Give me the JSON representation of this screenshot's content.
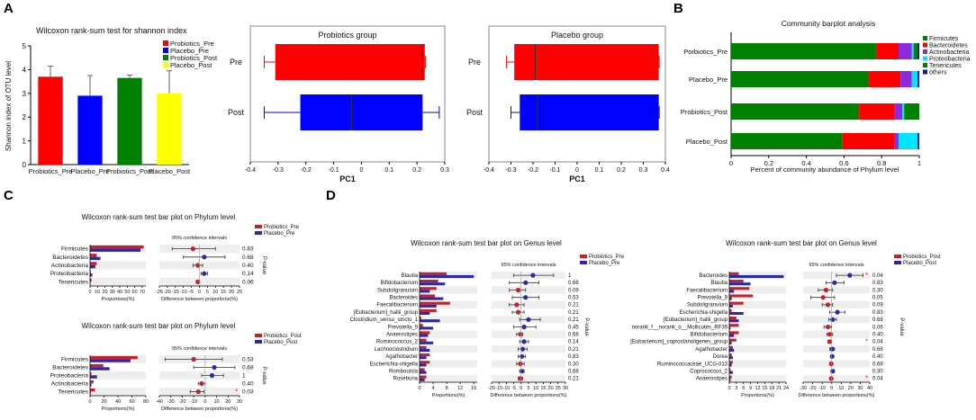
{
  "panels": {
    "a": "A",
    "b": "B",
    "c": "C",
    "d": "D"
  },
  "colors": {
    "red": "#ff0000",
    "blue": "#0000ff",
    "green": "#008000",
    "yellow": "#ffff00",
    "dkred": "#c8202a",
    "dkblue": "#2a2aa8",
    "cyan": "#00e5ff",
    "purple": "#8a2be2",
    "navy": "#1515c0"
  },
  "chart_data": [
    {
      "id": "A1",
      "type": "bar",
      "title": "Wilcoxon rank-sum test for shannon index",
      "ylabel": "Shannon index of OTU level",
      "ylim": [
        0,
        5
      ],
      "yticks": [
        0,
        1,
        2,
        3,
        4,
        5
      ],
      "categories": [
        "Probiotics_Pre",
        "Placebo_Pre",
        "Probiotics_Post",
        "Placebo_Post"
      ],
      "values": [
        3.7,
        2.9,
        3.65,
        3.0
      ],
      "errors": [
        0.45,
        0.85,
        0.12,
        0.95
      ],
      "legend": [
        "Probiotics_Pre",
        "Placebo_Pre",
        "Probiotics_Post",
        "Placebo_Post"
      ]
    },
    {
      "id": "A2",
      "type": "boxplot",
      "title": "Probiotics group",
      "xlabel": "PC1",
      "xlim": [
        -0.4,
        0.3
      ],
      "xticks": [
        "-0.4",
        "-0.3",
        "-0.2",
        "-0.1",
        "0",
        "0.1",
        "0.2",
        "0.3"
      ],
      "boxes": [
        {
          "label": "Pre",
          "min": -0.35,
          "q1": -0.31,
          "median": 0.22,
          "q3": 0.228,
          "max": 0.23
        },
        {
          "label": "Post",
          "min": -0.35,
          "q1": -0.22,
          "median": -0.035,
          "q3": 0.22,
          "max": 0.28
        }
      ]
    },
    {
      "id": "A3",
      "type": "boxplot",
      "title": "Placebo group",
      "xlabel": "PC1",
      "xlim": [
        -0.4,
        0.4
      ],
      "xticks": [
        "-0.4",
        "-0.3",
        "-0.2",
        "-0.1",
        "0",
        "0.1",
        "0.2",
        "0.3",
        "0.4"
      ],
      "boxes": [
        {
          "label": "Pre",
          "min": -0.32,
          "q1": -0.285,
          "median": -0.19,
          "q3": 0.37,
          "max": 0.372
        },
        {
          "label": "Post",
          "min": -0.3,
          "q1": -0.26,
          "median": -0.18,
          "q3": 0.37,
          "max": 0.372
        }
      ]
    },
    {
      "id": "B",
      "type": "stacked-bar",
      "title": "Community barplot analysis",
      "xlabel": "Percent of community abundance of Phylum level",
      "xticks": [
        "0",
        "0.2",
        "0.4",
        "0.6",
        "0.8",
        "1"
      ],
      "categories": [
        "Porbiotics_Pre",
        "Placebo_Pre",
        "Probiotics_Post",
        "Placebo_Post"
      ],
      "series": [
        {
          "name": "Firmicutes",
          "values": [
            0.77,
            0.73,
            0.68,
            0.59
          ]
        },
        {
          "name": "Bacteroidetes",
          "values": [
            0.12,
            0.17,
            0.19,
            0.28
          ]
        },
        {
          "name": "Actinobacteria",
          "values": [
            0.07,
            0.06,
            0.04,
            0.02
          ]
        },
        {
          "name": "Proteobacteria",
          "values": [
            0.01,
            0.03,
            0.01,
            0.1
          ]
        },
        {
          "name": "Tenericutes",
          "values": [
            0.02,
            0.0,
            0.08,
            0.0
          ]
        },
        {
          "name": "others",
          "values": [
            0.01,
            0.01,
            0.0,
            0.01
          ]
        }
      ]
    },
    {
      "id": "C1",
      "type": "diff-bar",
      "title": "Wilcoxon rank-sum test bar plot on Phylum level",
      "legend": [
        "Probiotics_Pre",
        "Placebo_Pre"
      ],
      "ci_label": "95% confidence intervals",
      "xlabel_left": "Proportions(%)",
      "xlabel_right": "Difference between proportions(%)",
      "pvalue_label": "P-value",
      "left_xticks": [
        "0",
        "10",
        "20",
        "30",
        "40",
        "50",
        "60",
        "70"
      ],
      "left_max": 75,
      "right_xticks": [
        "-25",
        "-20",
        "-15",
        "-10",
        "-5",
        "0",
        "5",
        "10",
        "15",
        "20",
        "25"
      ],
      "right_min": -25,
      "right_max": 25,
      "rows": [
        {
          "label": "Firmicutes",
          "a": 72,
          "b": 68,
          "diff": -4,
          "lo": -17,
          "hi": 10,
          "p": "0.83",
          "sig": ""
        },
        {
          "label": "Bacteroidetes",
          "a": 9,
          "b": 14,
          "diff": 3,
          "lo": -10,
          "hi": 16,
          "p": "0.68",
          "sig": ""
        },
        {
          "label": "Actinobacteria",
          "a": 9,
          "b": 7,
          "diff": -1,
          "lo": -4,
          "hi": 2,
          "p": "0.40",
          "sig": ""
        },
        {
          "label": "Proteobacteria",
          "a": 1,
          "b": 3,
          "diff": 3,
          "lo": 1,
          "hi": 5,
          "p": "0.14",
          "sig": ""
        },
        {
          "label": "Tenericutes",
          "a": 2,
          "b": 0.5,
          "diff": -1,
          "lo": -2,
          "hi": 0,
          "p": "0.06",
          "sig": ""
        }
      ]
    },
    {
      "id": "C2",
      "type": "diff-bar",
      "title": "Wilcoxon rank-sum test bar plot on Phylum level",
      "legend": [
        "Probiotics_Post",
        "Placebo_Post"
      ],
      "ci_label": "95% confidence intervals",
      "xlabel_left": "Proportions(%)",
      "xlabel_right": "Difference between proportions(%)",
      "pvalue_label": "P-value",
      "left_xticks": [
        "0",
        "20",
        "40",
        "60",
        "80"
      ],
      "left_max": 80,
      "right_xticks": [
        "-40",
        "-30",
        "-20",
        "-10",
        "0",
        "10",
        "20",
        "30"
      ],
      "right_min": -40,
      "right_max": 30,
      "rows": [
        {
          "label": "Firmicutes",
          "a": 68,
          "b": 58,
          "diff": -10,
          "lo": -35,
          "hi": 15,
          "p": "0.53",
          "sig": ""
        },
        {
          "label": "Bacteroidetes",
          "a": 19,
          "b": 28,
          "diff": 8,
          "lo": -10,
          "hi": 26,
          "p": "0.68",
          "sig": ""
        },
        {
          "label": "Proteobacteria",
          "a": 2,
          "b": 10,
          "diff": 6,
          "lo": -3,
          "hi": 16,
          "p": "1",
          "sig": ""
        },
        {
          "label": "Actinobacteria",
          "a": 5,
          "b": 2,
          "diff": -3,
          "lo": -6,
          "hi": 0,
          "p": "0.40",
          "sig": ""
        },
        {
          "label": "Tenericutes",
          "a": 7,
          "b": 1,
          "diff": -6,
          "lo": -13,
          "hi": -1,
          "p": "0.03",
          "sig": "*"
        }
      ]
    },
    {
      "id": "D1",
      "type": "diff-bar",
      "title": "Wilcoxon rank-sum test bar plot on Genus level",
      "legend": [
        "Probiotics_Pre",
        "Placebo_Pre"
      ],
      "ci_label": "95% confidence intervals",
      "xlabel_left": "Proportions(%)",
      "xlabel_right": "Difference between proportions(%)",
      "pvalue_label": "P-value",
      "left_xticks": [
        "0",
        "4",
        "8",
        "12",
        "16"
      ],
      "left_max": 17,
      "right_xticks": [
        "-20",
        "-15",
        "-10",
        "-5",
        "0",
        "5",
        "10",
        "15",
        "20",
        "25",
        "30"
      ],
      "right_min": -20,
      "right_max": 30,
      "rows": [
        {
          "label": "Blautia",
          "a": 8,
          "b": 16,
          "diff": 8,
          "lo": -5,
          "hi": 22,
          "p": "1",
          "sig": ""
        },
        {
          "label": "Bifidobacterium",
          "a": 5.5,
          "b": 7.5,
          "diff": 3,
          "lo": -8,
          "hi": 12,
          "p": "0.68",
          "sig": ""
        },
        {
          "label": "Subdoligranulum",
          "a": 5,
          "b": 3,
          "diff": -2,
          "lo": -8,
          "hi": 3,
          "p": "0.09",
          "sig": ""
        },
        {
          "label": "Bacteroides",
          "a": 4.5,
          "b": 7,
          "diff": 3,
          "lo": -6,
          "hi": 12,
          "p": "0.53",
          "sig": ""
        },
        {
          "label": "Faecalibacterium",
          "a": 9,
          "b": 5,
          "diff": -3,
          "lo": -8,
          "hi": 2,
          "p": "0.21",
          "sig": ""
        },
        {
          "label": "[Eubacterium]_hallii_group",
          "a": 5,
          "b": 3,
          "diff": -2,
          "lo": -6,
          "hi": 2,
          "p": "0.21",
          "sig": ""
        },
        {
          "label": "Clostridium_sensu_stricto_1",
          "a": 0.5,
          "b": 6,
          "diff": 5,
          "lo": -1,
          "hi": 13,
          "p": "0.21",
          "sig": ""
        },
        {
          "label": "Prevotella_9",
          "a": 1,
          "b": 4,
          "diff": 2,
          "lo": -5,
          "hi": 10,
          "p": "0.45",
          "sig": ""
        },
        {
          "label": "Anaerostipes",
          "a": 3,
          "b": 2.5,
          "diff": -0.5,
          "lo": -3,
          "hi": 1,
          "p": "0.68",
          "sig": ""
        },
        {
          "label": "Ruminococcus_2",
          "a": 2,
          "b": 4,
          "diff": 2,
          "lo": -1,
          "hi": 5,
          "p": "0.14",
          "sig": ""
        },
        {
          "label": "Lachnoclostridium",
          "a": 2,
          "b": 3,
          "diff": 1,
          "lo": -2,
          "hi": 4,
          "p": "0.21",
          "sig": ""
        },
        {
          "label": "Agathobacter",
          "a": 3,
          "b": 2,
          "diff": 0.5,
          "lo": -2,
          "hi": 3,
          "p": "0.83",
          "sig": ""
        },
        {
          "label": "Escherichia-shigella",
          "a": 3,
          "b": 2,
          "diff": -0.5,
          "lo": -3,
          "hi": 2,
          "p": "0.30",
          "sig": ""
        },
        {
          "label": "Romboutsia",
          "a": 1.5,
          "b": 2,
          "diff": 0.5,
          "lo": -1,
          "hi": 2,
          "p": "0.68",
          "sig": ""
        },
        {
          "label": "Roseburia",
          "a": 2,
          "b": 1.5,
          "diff": -0.5,
          "lo": -2,
          "hi": 1,
          "p": "0.21",
          "sig": ""
        }
      ]
    },
    {
      "id": "D2",
      "type": "diff-bar",
      "title": "Wilcoxon rank-sum test bar plot on Genus level",
      "legend": [
        "Probiotics_Post",
        "Placebo_Post"
      ],
      "ci_label": "95% confidence intervals",
      "xlabel_left": "Proportions(%)",
      "xlabel_right": "Difference between proportions(%)",
      "pvalue_label": "P-value",
      "left_xticks": [
        "0",
        "3",
        "6",
        "9",
        "12",
        "15",
        "18",
        "21",
        "24"
      ],
      "left_max": 24,
      "right_xticks": [
        "-30",
        "-20",
        "-10",
        "0",
        "10",
        "20",
        "30",
        "40"
      ],
      "right_min": -30,
      "right_max": 40,
      "rows": [
        {
          "label": "Bacteroides",
          "a": 4,
          "b": 23,
          "diff": 19,
          "lo": 5,
          "hi": 33,
          "p": "0.04",
          "sig": "*"
        },
        {
          "label": "Blautia",
          "a": 6,
          "b": 9,
          "diff": 3,
          "lo": -6,
          "hi": 13,
          "p": "0.83",
          "sig": ""
        },
        {
          "label": "Faecalibacterium",
          "a": 8.5,
          "b": 2,
          "diff": -6,
          "lo": -14,
          "hi": 1,
          "p": "0.30",
          "sig": ""
        },
        {
          "label": "Prevotella_9",
          "a": 10,
          "b": 1,
          "diff": -9,
          "lo": -22,
          "hi": 3,
          "p": "0.05",
          "sig": ""
        },
        {
          "label": "Subdoligranulum",
          "a": 6,
          "b": 1.5,
          "diff": -4,
          "lo": -10,
          "hi": 1,
          "p": "0.09",
          "sig": ""
        },
        {
          "label": "Escherichia-shigella",
          "a": 1,
          "b": 6,
          "diff": 6,
          "lo": -2,
          "hi": 14,
          "p": "0.83",
          "sig": ""
        },
        {
          "label": "[Eubacterium]_hallii_group",
          "a": 3,
          "b": 4,
          "diff": 1,
          "lo": -3,
          "hi": 5,
          "p": "0.68",
          "sig": ""
        },
        {
          "label": "norank_f__norank_o__Mollicutes_RF39",
          "a": 4,
          "b": 0.5,
          "diff": -4,
          "lo": -8,
          "hi": -0.5,
          "p": "0.06",
          "sig": ""
        },
        {
          "label": "Bifidobacterium",
          "a": 4,
          "b": 2,
          "diff": -2,
          "lo": -5,
          "hi": 1,
          "p": "0.40",
          "sig": ""
        },
        {
          "label": "[Eubacterium]_coprostanoligenes_group",
          "a": 3,
          "b": 1,
          "diff": -2,
          "lo": -4,
          "hi": 0,
          "p": "0.04",
          "sig": "*"
        },
        {
          "label": "Agathobacter",
          "a": 1.5,
          "b": 2,
          "diff": 0.5,
          "lo": -2,
          "hi": 3,
          "p": "0.68",
          "sig": ""
        },
        {
          "label": "Dorea",
          "a": 1,
          "b": 1.5,
          "diff": 0.5,
          "lo": -1,
          "hi": 2,
          "p": "0.40",
          "sig": ""
        },
        {
          "label": "Ruminococcaceae_UCG-013",
          "a": 1.5,
          "b": 1,
          "diff": -0.5,
          "lo": -2,
          "hi": 1,
          "p": "0.68",
          "sig": ""
        },
        {
          "label": "Coprococcus_2",
          "a": 0.5,
          "b": 1.5,
          "diff": 1,
          "lo": -0.5,
          "hi": 3,
          "p": "0.30",
          "sig": ""
        },
        {
          "label": "Anaerostipes",
          "a": 1,
          "b": 0.5,
          "diff": -0.5,
          "lo": -1.5,
          "hi": 0.5,
          "p": "0.04",
          "sig": "*"
        }
      ]
    }
  ]
}
